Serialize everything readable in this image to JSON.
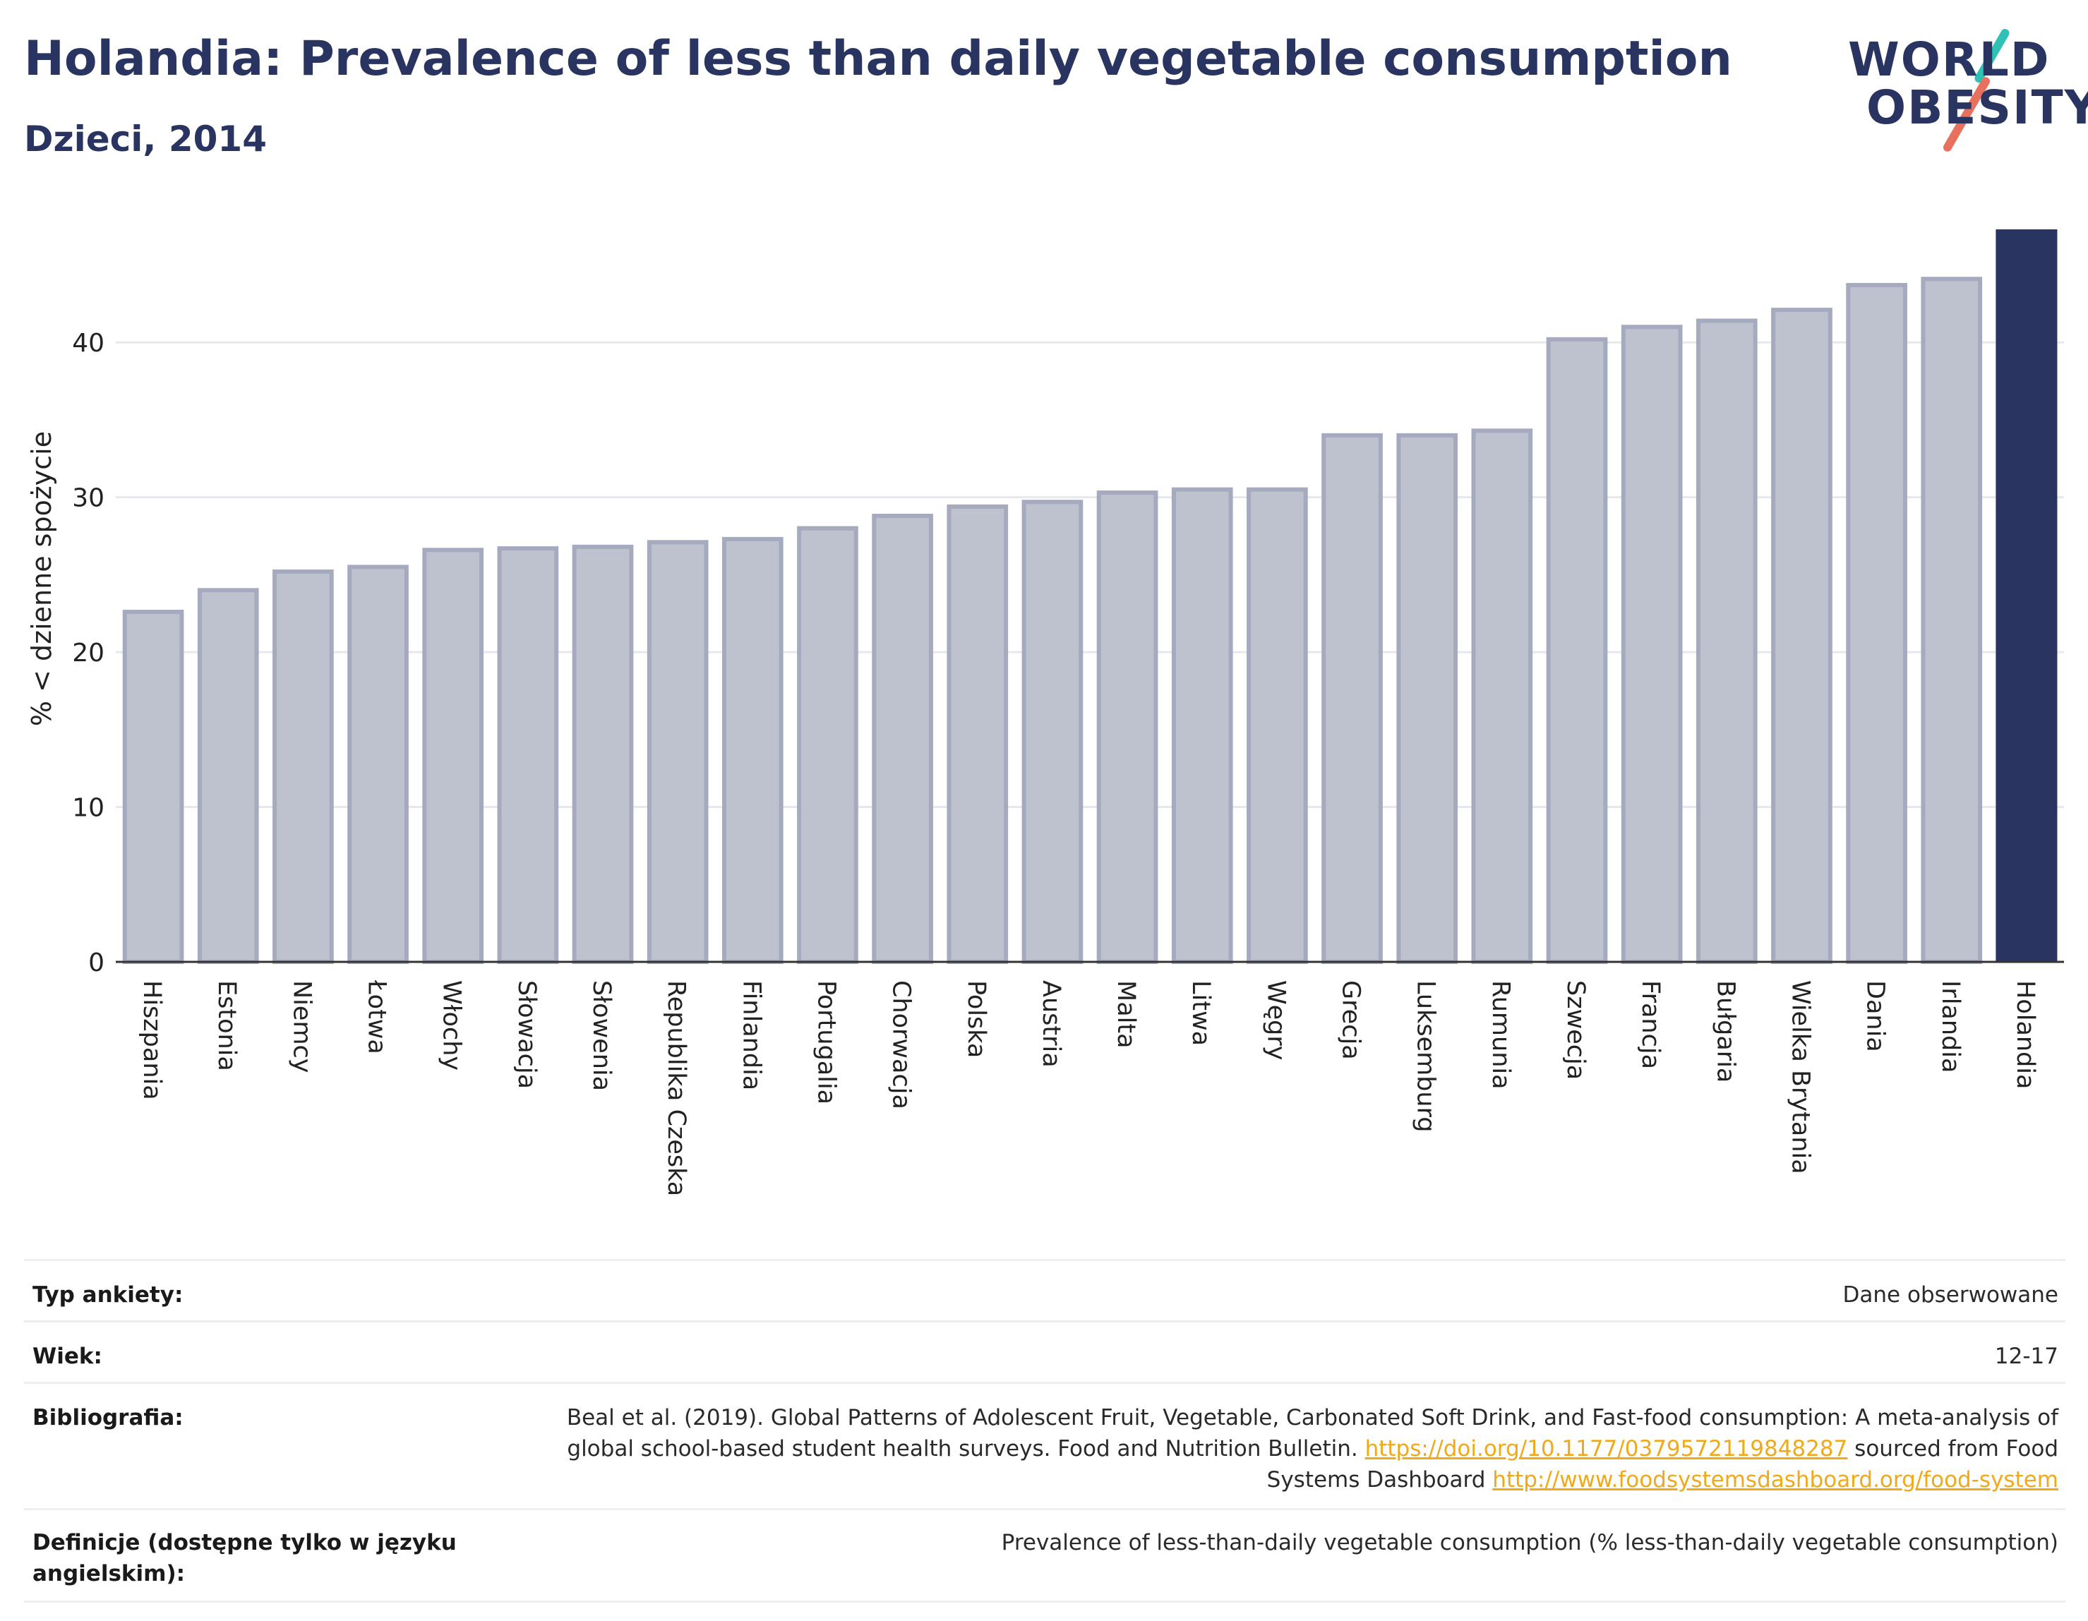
{
  "header": {
    "title": "Holandia: Prevalence of less than daily vegetable consumption",
    "subtitle": "Dzieci, 2014"
  },
  "logo": {
    "line1": "WORLD",
    "line2": "OBESITY"
  },
  "colors": {
    "bar": "#bec1ce",
    "bar_border": "#a6aabe",
    "highlight": "#2a3460",
    "grid": "#e6e8ee",
    "axis": "#333333"
  },
  "chart_data": {
    "type": "bar",
    "categories": [
      "Hiszpania",
      "Estonia",
      "Niemcy",
      "Łotwa",
      "Włochy",
      "Słowacja",
      "Słowenia",
      "Republika Czeska",
      "Finlandia",
      "Portugalia",
      "Chorwacja",
      "Polska",
      "Austria",
      "Malta",
      "Litwa",
      "Węgry",
      "Grecja",
      "Luksemburg",
      "Rumunia",
      "Szwecja",
      "Francja",
      "Bułgaria",
      "Wielka Brytania",
      "Dania",
      "Irlandia",
      "Holandia"
    ],
    "values": [
      22.6,
      24.0,
      25.2,
      25.5,
      26.6,
      26.7,
      26.8,
      27.1,
      27.3,
      28.0,
      28.8,
      29.4,
      29.7,
      30.3,
      30.5,
      30.5,
      34.0,
      34.0,
      34.3,
      40.2,
      41.0,
      41.4,
      42.1,
      43.7,
      44.1,
      47.3
    ],
    "highlight": "Holandia",
    "ylabel": "% < dzienne spożycie",
    "yticks": [
      0,
      10,
      20,
      30,
      40
    ],
    "ylim": [
      0,
      47.3
    ],
    "grid": true
  },
  "info": {
    "survey_type": {
      "label": "Typ ankiety:",
      "value": "Dane obserwowane"
    },
    "age": {
      "label": "Wiek:",
      "value": "12-17"
    },
    "bibliography": {
      "label": "Bibliografia:",
      "text1": "Beal et al. (2019). Global Patterns of Adolescent Fruit, Vegetable, Carbonated Soft Drink, and Fast-food consumption: A meta-analysis of global school-based student health surveys. Food and Nutrition Bulletin. ",
      "link1": "https://doi.org/10.1177/0379572119848287",
      "text2": " sourced from Food Systems Dashboard ",
      "link2": "http://www.foodsystemsdashboard.org/food-system"
    },
    "definitions": {
      "label": "Definicje (dostępne tylko w języku angielskim):",
      "value": "Prevalence of less-than-daily vegetable consumption (% less-than-daily vegetable consumption)"
    }
  }
}
